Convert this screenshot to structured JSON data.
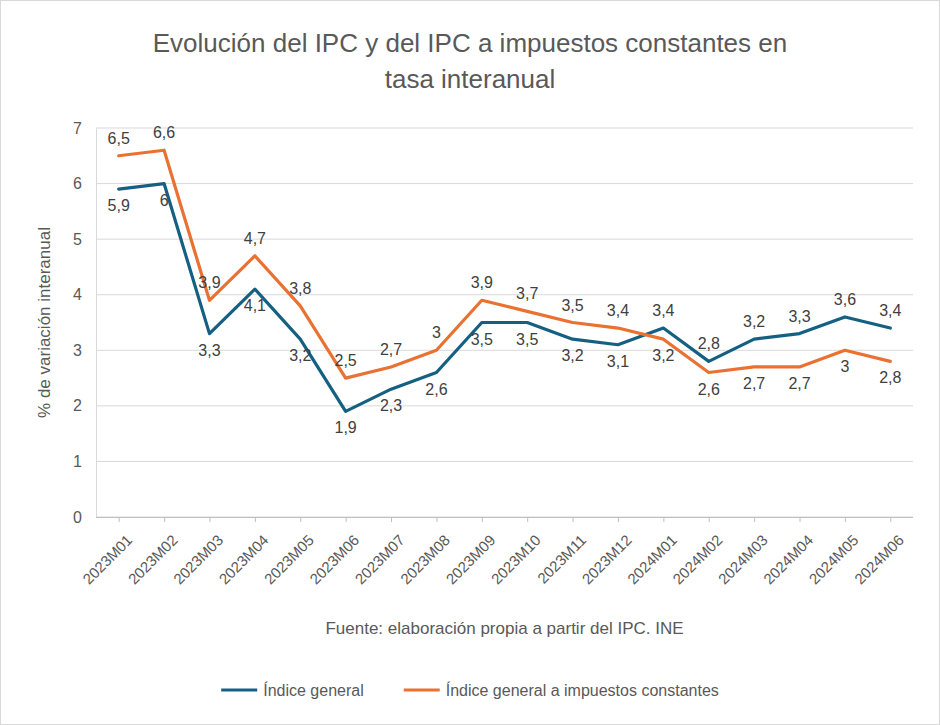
{
  "chart_data": {
    "type": "line",
    "title": "Evolución del IPC y del IPC a impuestos constantes en tasa interanual",
    "x_label": "Fuente: elaboración propia a partir del IPC. INE",
    "y_label": "% de variación interanual",
    "categories": [
      "2023M01",
      "2023M02",
      "2023M03",
      "2023M04",
      "2023M05",
      "2023M06",
      "2023M07",
      "2023M08",
      "2023M09",
      "2023M10",
      "2023M11",
      "2023M12",
      "2024M01",
      "2024M02",
      "2024M03",
      "2024M04",
      "2024M05",
      "2024M06"
    ],
    "series": [
      {
        "name": "Índice general",
        "color": "#156082",
        "values": [
          5.9,
          6,
          3.3,
          4.1,
          3.2,
          1.9,
          2.3,
          2.6,
          3.5,
          3.5,
          3.2,
          3.1,
          3.4,
          2.8,
          3.2,
          3.3,
          3.6,
          3.4
        ],
        "value_labels": [
          "5,9",
          "6",
          "3,3",
          "4,1",
          "3,2",
          "1,9",
          "2,3",
          "2,6",
          "3,5",
          "3,5",
          "3,2",
          "3,1",
          "3,4",
          "2,8",
          "3,2",
          "3,3",
          "3,6",
          "3,4"
        ]
      },
      {
        "name": "Índice general a impuestos constantes",
        "color": "#E97132",
        "values": [
          6.5,
          6.6,
          3.9,
          4.7,
          3.8,
          2.5,
          2.7,
          3,
          3.9,
          3.7,
          3.5,
          3.4,
          3.2,
          2.6,
          2.7,
          2.7,
          3,
          2.8
        ],
        "value_labels": [
          "6,5",
          "6,6",
          "3,9",
          "4,7",
          "3,8",
          "2,5",
          "2,7",
          "3",
          "3,9",
          "3,7",
          "3,5",
          "3,4",
          "3,2",
          "2,6",
          "2,7",
          "2,7",
          "3",
          "2,8"
        ]
      }
    ],
    "ylim": [
      0,
      7
    ],
    "yticks": [
      0,
      1,
      2,
      3,
      4,
      5,
      6,
      7
    ],
    "grid": true,
    "legend": "bottom",
    "data_labels": true
  }
}
